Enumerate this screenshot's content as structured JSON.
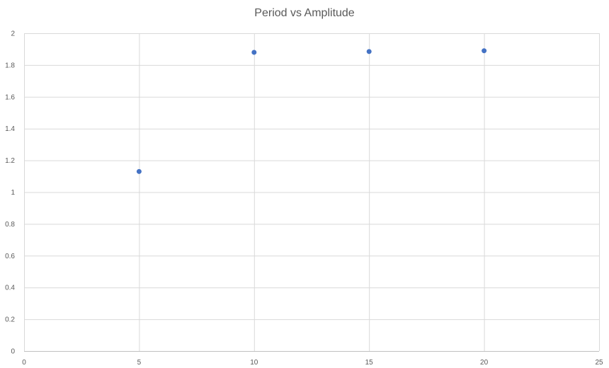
{
  "chart_data": {
    "type": "scatter",
    "title": "Period vs Amplitude",
    "xlabel": "",
    "ylabel": "",
    "xlim": [
      0,
      25
    ],
    "ylim": [
      0,
      2
    ],
    "x_ticks": [
      "0",
      "5",
      "10",
      "15",
      "20",
      "25"
    ],
    "y_ticks": [
      "0",
      "0.2",
      "0.4",
      "0.6",
      "0.8",
      "1",
      "1.2",
      "1.4",
      "1.6",
      "1.8",
      "2"
    ],
    "grid": true,
    "legend": "none",
    "series": [
      {
        "color": "#4472C4",
        "points": [
          {
            "x": 5,
            "y": 1.13
          },
          {
            "x": 10,
            "y": 1.88
          },
          {
            "x": 15,
            "y": 1.885
          },
          {
            "x": 20,
            "y": 1.89
          }
        ]
      }
    ]
  }
}
